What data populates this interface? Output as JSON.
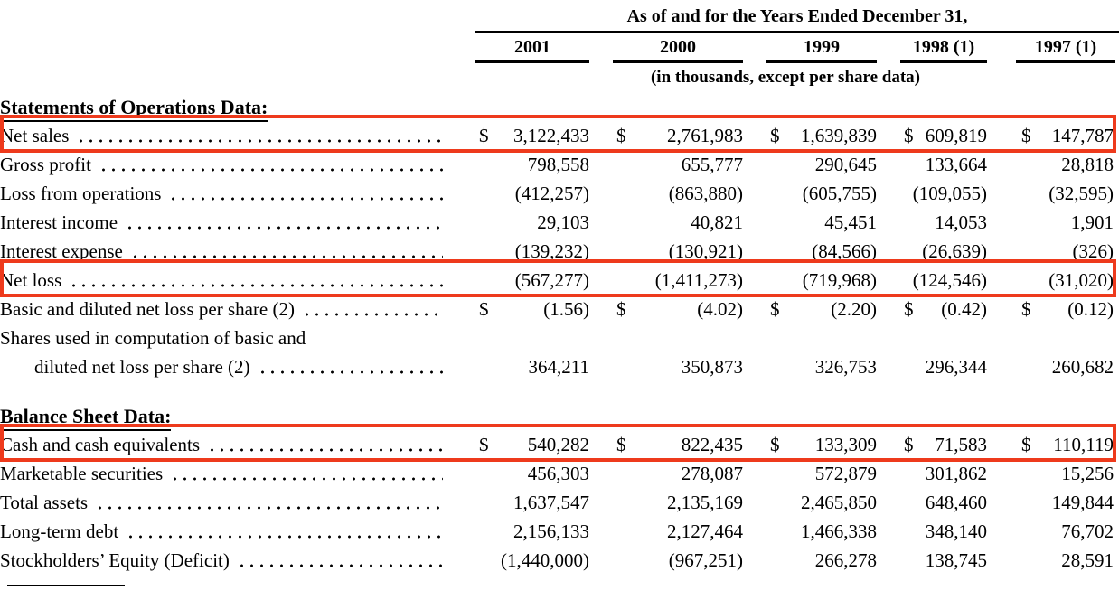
{
  "annotation": {
    "highlight_color": "#ee3a1c"
  },
  "header": {
    "title": "As of and for the Years Ended December 31,",
    "columns": [
      "2001",
      "2000",
      "1999",
      "1998 (1)",
      "1997 (1)"
    ],
    "subtitle": "(in thousands, except per share data)"
  },
  "sections": [
    {
      "heading": "Statements of Operations Data:",
      "rows": [
        {
          "label": "Net sales",
          "highlight": true,
          "cells": [
            {
              "d": "$",
              "v": "3,122,433"
            },
            {
              "d": "$",
              "v": "2,761,983"
            },
            {
              "d": "$",
              "v": "1,639,839"
            },
            {
              "d": "$",
              "v": "609,819"
            },
            {
              "d": "$",
              "v": "147,787"
            }
          ]
        },
        {
          "label": "Gross profit",
          "cells": [
            {
              "v": "798,558"
            },
            {
              "v": "655,777"
            },
            {
              "v": "290,645"
            },
            {
              "v": "133,664"
            },
            {
              "v": "28,818"
            }
          ]
        },
        {
          "label": "Loss from operations",
          "cells": [
            {
              "v": "(412,257)"
            },
            {
              "v": "(863,880)"
            },
            {
              "v": "(605,755)"
            },
            {
              "v": "(109,055)"
            },
            {
              "v": "(32,595)"
            }
          ]
        },
        {
          "label": "Interest income",
          "cells": [
            {
              "v": "29,103"
            },
            {
              "v": "40,821"
            },
            {
              "v": "45,451"
            },
            {
              "v": "14,053"
            },
            {
              "v": "1,901"
            }
          ]
        },
        {
          "label": "Interest expense",
          "cells": [
            {
              "v": "(139,232)"
            },
            {
              "v": "(130,921)"
            },
            {
              "v": "(84,566)"
            },
            {
              "v": "(26,639)"
            },
            {
              "v": "(326)"
            }
          ]
        },
        {
          "label": "Net loss",
          "highlight": true,
          "cells": [
            {
              "v": "(567,277)"
            },
            {
              "v": "(1,411,273)"
            },
            {
              "v": "(719,968)"
            },
            {
              "v": "(124,546)"
            },
            {
              "v": "(31,020)"
            }
          ]
        },
        {
          "label": "Basic and diluted net loss per share (2)",
          "cells": [
            {
              "d": "$",
              "v": "(1.56)"
            },
            {
              "d": "$",
              "v": "(4.02)"
            },
            {
              "d": "$",
              "v": "(2.20)"
            },
            {
              "d": "$",
              "v": "(0.42)"
            },
            {
              "d": "$",
              "v": "(0.12)"
            }
          ]
        },
        {
          "label": "Shares used in computation of basic and",
          "leader": false,
          "cells": null
        },
        {
          "label": "diluted net loss per share (2)",
          "indent": true,
          "cells": [
            {
              "v": "364,211"
            },
            {
              "v": "350,873"
            },
            {
              "v": "326,753"
            },
            {
              "v": "296,344"
            },
            {
              "v": "260,682"
            }
          ]
        }
      ]
    },
    {
      "heading": "Balance Sheet Data:",
      "rows": [
        {
          "label": "Cash and cash equivalents",
          "highlight": true,
          "cells": [
            {
              "d": "$",
              "v": "540,282"
            },
            {
              "d": "$",
              "v": "822,435"
            },
            {
              "d": "$",
              "v": "133,309"
            },
            {
              "d": "$",
              "v": "71,583"
            },
            {
              "d": "$",
              "v": "110,119"
            }
          ]
        },
        {
          "label": "Marketable securities",
          "cells": [
            {
              "v": "456,303"
            },
            {
              "v": "278,087"
            },
            {
              "v": "572,879"
            },
            {
              "v": "301,862"
            },
            {
              "v": "15,256"
            }
          ]
        },
        {
          "label": "Total assets",
          "cells": [
            {
              "v": "1,637,547"
            },
            {
              "v": "2,135,169"
            },
            {
              "v": "2,465,850"
            },
            {
              "v": "648,460"
            },
            {
              "v": "149,844"
            }
          ]
        },
        {
          "label": "Long-term debt",
          "cells": [
            {
              "v": "2,156,133"
            },
            {
              "v": "2,127,464"
            },
            {
              "v": "1,466,338"
            },
            {
              "v": "348,140"
            },
            {
              "v": "76,702"
            }
          ]
        },
        {
          "label": "Stockholders’ Equity (Deficit)",
          "cells": [
            {
              "v": "(1,440,000)"
            },
            {
              "v": "(967,251)"
            },
            {
              "v": "266,278"
            },
            {
              "v": "138,745"
            },
            {
              "v": "28,591"
            }
          ]
        }
      ]
    }
  ]
}
